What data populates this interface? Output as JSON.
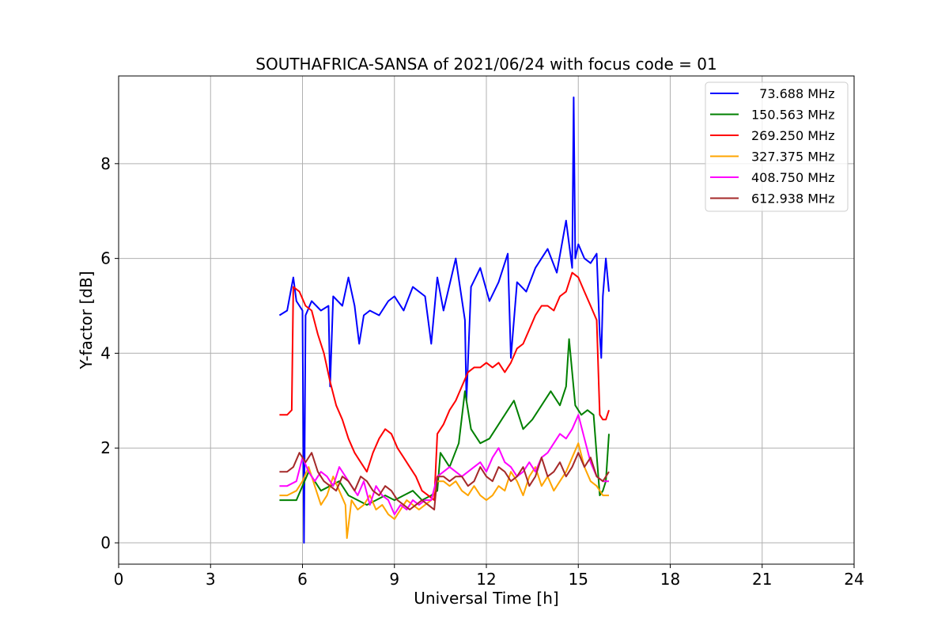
{
  "chart_data": {
    "type": "line",
    "title": "SOUTHAFRICA-SANSA of 2021/06/24 with focus code = 01",
    "xlabel": "Universal Time [h]",
    "ylabel": "Y-factor [dB]",
    "xlim": [
      0,
      24
    ],
    "ylim": [
      -0.45,
      9.85
    ],
    "xticks": [
      0,
      3,
      6,
      9,
      12,
      15,
      18,
      21,
      24
    ],
    "xtick_labels": [
      "0",
      "3",
      "6",
      "9",
      "12",
      "15",
      "18",
      "21",
      "24"
    ],
    "yticks": [
      0,
      2,
      4,
      6,
      8
    ],
    "ytick_labels": [
      "0",
      "2",
      "4",
      "6",
      "8"
    ],
    "grid": true,
    "legend_position": "top-right",
    "series": [
      {
        "name": "73.688 MHz",
        "legend_label": "  73.688 MHz",
        "color": "#0000ff",
        "x": [
          5.25,
          5.5,
          5.7,
          5.8,
          6.0,
          6.05,
          6.1,
          6.3,
          6.6,
          6.85,
          6.9,
          7.0,
          7.3,
          7.5,
          7.7,
          7.85,
          8.0,
          8.2,
          8.5,
          8.8,
          9.0,
          9.3,
          9.6,
          10.0,
          10.2,
          10.4,
          10.6,
          11.0,
          11.3,
          11.35,
          11.5,
          11.8,
          12.1,
          12.4,
          12.7,
          12.8,
          13.0,
          13.3,
          13.6,
          14.0,
          14.3,
          14.6,
          14.8,
          14.85,
          14.9,
          15.0,
          15.2,
          15.4,
          15.6,
          15.7,
          15.75,
          15.8,
          15.9,
          16.0
        ],
        "y": [
          4.8,
          4.9,
          5.6,
          5.1,
          4.9,
          0.0,
          4.8,
          5.1,
          4.9,
          5.0,
          3.3,
          5.2,
          5.0,
          5.6,
          5.0,
          4.2,
          4.8,
          4.9,
          4.8,
          5.1,
          5.2,
          4.9,
          5.4,
          5.2,
          4.2,
          5.6,
          4.9,
          6.0,
          4.7,
          3.0,
          5.4,
          5.8,
          5.1,
          5.5,
          6.1,
          3.9,
          5.5,
          5.3,
          5.8,
          6.2,
          5.7,
          6.8,
          5.8,
          9.4,
          6.0,
          6.3,
          6.0,
          5.9,
          6.1,
          4.4,
          3.9,
          5.2,
          6.0,
          5.3
        ]
      },
      {
        "name": "150.563 MHz",
        "legend_label": "150.563 MHz",
        "color": "#008000",
        "x": [
          5.25,
          5.5,
          5.8,
          6.0,
          6.2,
          6.4,
          6.6,
          6.9,
          7.2,
          7.5,
          7.8,
          8.1,
          8.4,
          8.7,
          9.0,
          9.3,
          9.6,
          9.9,
          10.2,
          10.4,
          10.5,
          10.8,
          11.1,
          11.3,
          11.5,
          11.8,
          12.1,
          12.4,
          12.7,
          12.9,
          13.2,
          13.5,
          13.8,
          14.1,
          14.4,
          14.6,
          14.7,
          14.9,
          15.1,
          15.3,
          15.5,
          15.7,
          15.8,
          15.9,
          16.0
        ],
        "y": [
          0.9,
          0.9,
          0.9,
          1.2,
          1.5,
          1.3,
          1.1,
          1.2,
          1.3,
          1.0,
          0.9,
          0.8,
          0.9,
          1.0,
          0.9,
          1.0,
          1.1,
          0.9,
          1.0,
          1.1,
          1.9,
          1.6,
          2.1,
          3.2,
          2.4,
          2.1,
          2.2,
          2.5,
          2.8,
          3.0,
          2.4,
          2.6,
          2.9,
          3.2,
          2.9,
          3.3,
          4.3,
          2.9,
          2.7,
          2.8,
          2.7,
          1.0,
          1.1,
          1.3,
          2.3
        ]
      },
      {
        "name": "269.250 MHz",
        "legend_label": "269.250 MHz",
        "color": "#ff0000",
        "x": [
          5.25,
          5.5,
          5.65,
          5.7,
          5.9,
          6.1,
          6.3,
          6.5,
          6.7,
          6.9,
          7.1,
          7.3,
          7.5,
          7.7,
          7.9,
          8.1,
          8.3,
          8.5,
          8.7,
          8.9,
          9.1,
          9.3,
          9.5,
          9.7,
          9.9,
          10.1,
          10.3,
          10.4,
          10.6,
          10.8,
          11.0,
          11.2,
          11.4,
          11.6,
          11.8,
          12.0,
          12.2,
          12.4,
          12.6,
          12.8,
          13.0,
          13.2,
          13.4,
          13.6,
          13.8,
          14.0,
          14.2,
          14.4,
          14.6,
          14.8,
          15.0,
          15.2,
          15.4,
          15.6,
          15.7,
          15.8,
          15.9,
          16.0
        ],
        "y": [
          2.7,
          2.7,
          2.8,
          5.4,
          5.3,
          5.0,
          4.9,
          4.4,
          4.0,
          3.4,
          2.9,
          2.6,
          2.2,
          1.9,
          1.7,
          1.5,
          1.9,
          2.2,
          2.4,
          2.3,
          2.0,
          1.8,
          1.6,
          1.4,
          1.1,
          1.0,
          0.9,
          2.3,
          2.5,
          2.8,
          3.0,
          3.3,
          3.6,
          3.7,
          3.7,
          3.8,
          3.7,
          3.8,
          3.6,
          3.8,
          4.1,
          4.2,
          4.5,
          4.8,
          5.0,
          5.0,
          4.9,
          5.2,
          5.3,
          5.7,
          5.6,
          5.3,
          5.0,
          4.7,
          2.7,
          2.6,
          2.6,
          2.8
        ]
      },
      {
        "name": "327.375 MHz",
        "legend_label": "327.375 MHz",
        "color": "#ffa500",
        "x": [
          5.25,
          5.5,
          5.8,
          6.0,
          6.2,
          6.4,
          6.6,
          6.8,
          7.0,
          7.2,
          7.4,
          7.45,
          7.6,
          7.8,
          8.0,
          8.2,
          8.4,
          8.6,
          8.8,
          9.0,
          9.2,
          9.4,
          9.6,
          9.8,
          10.0,
          10.2,
          10.4,
          10.6,
          10.8,
          11.0,
          11.2,
          11.4,
          11.6,
          11.8,
          12.0,
          12.2,
          12.4,
          12.6,
          12.8,
          13.0,
          13.2,
          13.4,
          13.6,
          13.8,
          14.0,
          14.2,
          14.4,
          14.6,
          14.8,
          15.0,
          15.2,
          15.4,
          15.6,
          15.8,
          16.0
        ],
        "y": [
          1.0,
          1.0,
          1.1,
          1.3,
          1.6,
          1.2,
          0.8,
          1.0,
          1.4,
          1.1,
          0.8,
          0.1,
          0.9,
          0.7,
          0.8,
          1.0,
          0.7,
          0.8,
          0.6,
          0.5,
          0.7,
          0.9,
          0.8,
          0.7,
          0.8,
          0.9,
          1.3,
          1.3,
          1.2,
          1.3,
          1.1,
          1.0,
          1.2,
          1.0,
          0.9,
          1.0,
          1.2,
          1.1,
          1.5,
          1.3,
          1.0,
          1.4,
          1.6,
          1.2,
          1.4,
          1.1,
          1.3,
          1.5,
          1.8,
          2.1,
          1.6,
          1.3,
          1.2,
          1.0,
          1.0
        ]
      },
      {
        "name": "408.750 MHz",
        "legend_label": "408.750 MHz",
        "color": "#ff00ff",
        "x": [
          5.25,
          5.5,
          5.8,
          6.0,
          6.2,
          6.4,
          6.6,
          6.8,
          7.0,
          7.2,
          7.4,
          7.6,
          7.8,
          8.0,
          8.2,
          8.4,
          8.6,
          8.8,
          9.0,
          9.2,
          9.4,
          9.6,
          9.8,
          10.0,
          10.2,
          10.4,
          10.6,
          10.8,
          11.0,
          11.2,
          11.4,
          11.6,
          11.8,
          12.0,
          12.2,
          12.4,
          12.6,
          12.8,
          13.0,
          13.2,
          13.4,
          13.6,
          13.8,
          14.0,
          14.2,
          14.4,
          14.6,
          14.8,
          15.0,
          15.2,
          15.4,
          15.6,
          15.8,
          16.0
        ],
        "y": [
          1.2,
          1.2,
          1.3,
          1.8,
          1.5,
          1.3,
          1.5,
          1.4,
          1.2,
          1.6,
          1.4,
          1.2,
          1.0,
          1.3,
          0.8,
          1.2,
          1.0,
          0.9,
          0.6,
          0.8,
          0.7,
          0.9,
          0.8,
          0.9,
          0.9,
          1.4,
          1.5,
          1.6,
          1.5,
          1.4,
          1.5,
          1.6,
          1.7,
          1.5,
          1.8,
          2.0,
          1.7,
          1.6,
          1.4,
          1.5,
          1.7,
          1.5,
          1.8,
          1.9,
          2.1,
          2.3,
          2.2,
          2.4,
          2.7,
          2.2,
          1.7,
          1.4,
          1.3,
          1.3
        ]
      },
      {
        "name": "612.938 MHz",
        "legend_label": "612.938 MHz",
        "color": "#a52a2a",
        "x": [
          5.25,
          5.5,
          5.7,
          5.9,
          6.1,
          6.3,
          6.5,
          6.7,
          6.9,
          7.1,
          7.3,
          7.5,
          7.7,
          7.9,
          8.1,
          8.3,
          8.5,
          8.7,
          8.9,
          9.1,
          9.3,
          9.5,
          9.7,
          9.9,
          10.1,
          10.3,
          10.4,
          10.6,
          10.8,
          11.0,
          11.2,
          11.4,
          11.6,
          11.8,
          12.0,
          12.2,
          12.4,
          12.6,
          12.8,
          13.0,
          13.2,
          13.4,
          13.6,
          13.8,
          14.0,
          14.2,
          14.4,
          14.6,
          14.8,
          15.0,
          15.2,
          15.4,
          15.6,
          15.8,
          16.0
        ],
        "y": [
          1.5,
          1.5,
          1.6,
          1.9,
          1.7,
          1.9,
          1.5,
          1.3,
          1.2,
          1.1,
          1.4,
          1.3,
          1.1,
          1.4,
          1.3,
          1.1,
          1.0,
          1.2,
          1.1,
          0.9,
          0.8,
          0.7,
          0.8,
          0.9,
          0.8,
          0.7,
          1.4,
          1.4,
          1.3,
          1.4,
          1.4,
          1.2,
          1.3,
          1.6,
          1.4,
          1.3,
          1.6,
          1.5,
          1.3,
          1.4,
          1.6,
          1.2,
          1.4,
          1.8,
          1.4,
          1.5,
          1.7,
          1.4,
          1.6,
          1.9,
          1.6,
          1.8,
          1.4,
          1.3,
          1.5
        ]
      }
    ]
  }
}
